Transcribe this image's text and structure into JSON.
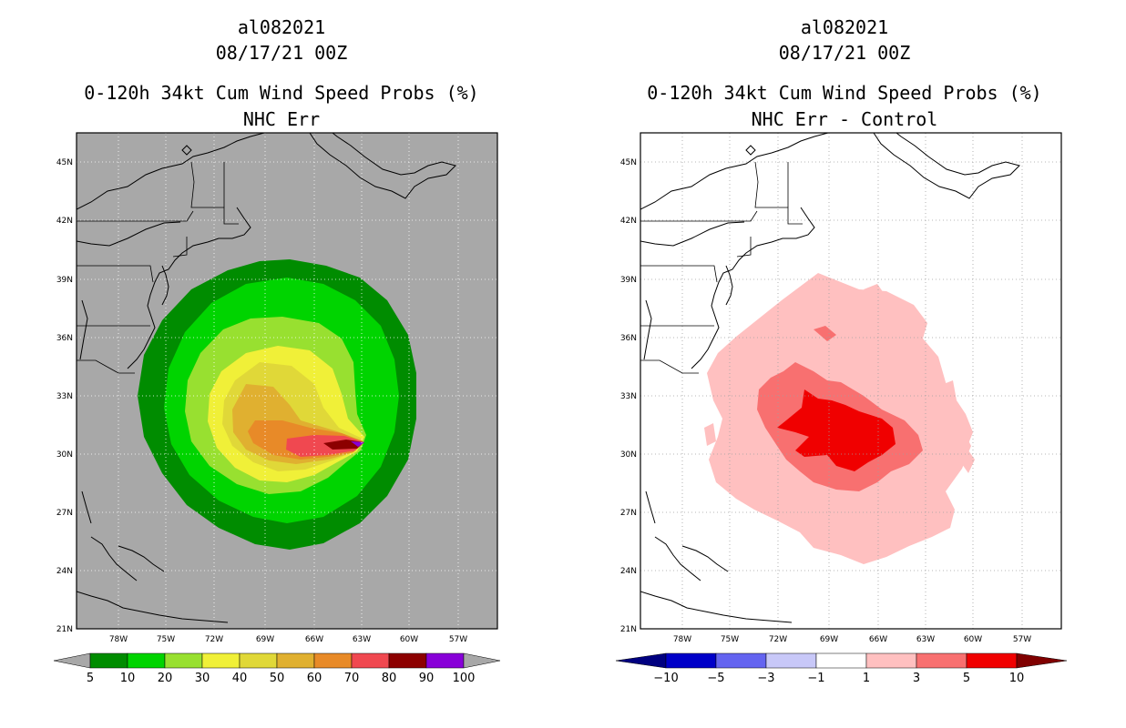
{
  "left": {
    "storm_id": "al082021",
    "datetime": "08/17/21 00Z",
    "product": "0-120h 34kt Cum Wind Speed Probs (%)",
    "subtitle": "NHC Err",
    "colorbar_labels": [
      "5",
      "10",
      "20",
      "30",
      "40",
      "50",
      "60",
      "70",
      "80",
      "90",
      "100"
    ],
    "colorbar_colors": [
      "#008c00",
      "#00d400",
      "#98e030",
      "#f0f038",
      "#e0d838",
      "#e0b030",
      "#e88a28",
      "#f04850",
      "#8c0000",
      "#8800d8"
    ]
  },
  "right": {
    "storm_id": "al082021",
    "datetime": "08/17/21 00Z",
    "product": "0-120h 34kt Cum Wind Speed Probs (%)",
    "subtitle": "NHC Err - Control",
    "colorbar_labels": [
      "−10",
      "−5",
      "−3",
      "−1",
      "1",
      "3",
      "5",
      "10"
    ],
    "colorbar_colors": [
      "#0000c8",
      "#6464f0",
      "#c8c8f8",
      "#ffffff",
      "#ffc0c0",
      "#f87070",
      "#f00000"
    ]
  },
  "axes": {
    "lat_labels": [
      "45N",
      "42N",
      "39N",
      "36N",
      "33N",
      "30N",
      "27N",
      "24N",
      "21N"
    ],
    "lon_labels": [
      "78W",
      "75W",
      "72W",
      "69W",
      "66W",
      "63W",
      "60W",
      "57W"
    ]
  },
  "chart_data": [
    {
      "type": "heatmap",
      "title": "0-120h 34kt Cum Wind Speed Probs (%)",
      "subtitle": "NHC Err",
      "units": "%",
      "xlim_lon": [
        -80.5,
        -55.5
      ],
      "ylim_lat": [
        21,
        46.5
      ],
      "contour_levels": [
        5,
        10,
        20,
        30,
        40,
        50,
        60,
        70,
        80,
        90,
        100
      ],
      "max_probability_location": {
        "lon": -63.2,
        "lat": 30.5
      }
    },
    {
      "type": "heatmap",
      "title": "0-120h 34kt Cum Wind Speed Probs (%)",
      "subtitle": "NHC Err - Control",
      "units": "%",
      "xlim_lon": [
        -80.5,
        -55.5
      ],
      "ylim_lat": [
        21,
        46.5
      ],
      "contour_levels": [
        -10,
        -5,
        -3,
        -1,
        1,
        3,
        5,
        10
      ],
      "max_difference_location": {
        "lon": -68.5,
        "lat": 30.8
      }
    }
  ]
}
